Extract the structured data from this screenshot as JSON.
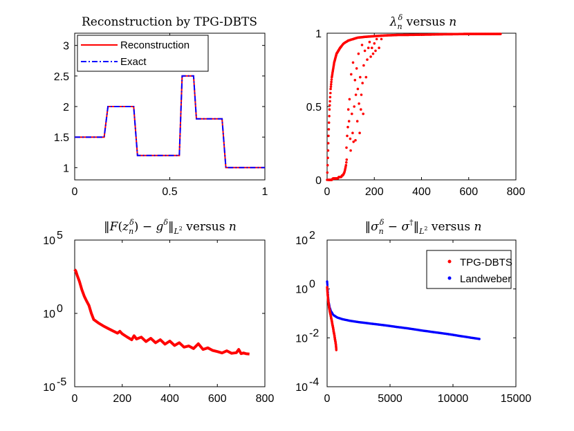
{
  "figure": {
    "name": "inverse-problem-figure"
  },
  "chart_data": [
    {
      "type": "line",
      "id": "p1",
      "title": "Reconstruction by TPG-DBTS",
      "xlim": [
        0,
        1
      ],
      "ylim": [
        0.8,
        3.2
      ],
      "xticks": [
        0,
        0.5,
        1
      ],
      "xtick_labels": [
        "0",
        "0.5",
        "1"
      ],
      "yticks": [
        1,
        1.5,
        2,
        2.5,
        3
      ],
      "ytick_labels": [
        "1",
        "1.5",
        "2",
        "2.5",
        "3"
      ],
      "legend_position": "top-left",
      "series": [
        {
          "name": "Reconstruction",
          "style": "solid",
          "color": "#ff0000",
          "x": [
            0,
            0.155,
            0.175,
            0.31,
            0.33,
            0.55,
            0.565,
            0.625,
            0.64,
            0.775,
            0.795,
            1
          ],
          "y": [
            1.5,
            1.5,
            2.0,
            2.0,
            1.2,
            1.2,
            2.5,
            2.5,
            1.8,
            1.8,
            1.0,
            1.0
          ]
        },
        {
          "name": "Exact",
          "style": "dash-dot",
          "color": "#0000ff",
          "x": [
            0,
            0.155,
            0.175,
            0.31,
            0.33,
            0.55,
            0.565,
            0.625,
            0.64,
            0.775,
            0.795,
            1
          ],
          "y": [
            1.5,
            1.5,
            2.0,
            2.0,
            1.2,
            1.2,
            2.5,
            2.5,
            1.8,
            1.8,
            1.0,
            1.0
          ]
        }
      ]
    },
    {
      "type": "scatter",
      "id": "p2",
      "title_main": "λ",
      "title_sub": "n",
      "title_sup": "δ",
      "title_rest": " versus ",
      "title_var": "n",
      "xlim": [
        0,
        800
      ],
      "ylim": [
        0,
        1
      ],
      "xticks": [
        0,
        200,
        400,
        600,
        800
      ],
      "xtick_labels": [
        "0",
        "200",
        "400",
        "600",
        "800"
      ],
      "yticks": [
        0,
        0.5,
        1
      ],
      "ytick_labels": [
        "0",
        "0.5",
        "1"
      ],
      "series": [
        {
          "name": "lambda-main-curve",
          "color": "#ff0000",
          "x": [
            0,
            3,
            6,
            10,
            15,
            20,
            30,
            40,
            55,
            70,
            90,
            110,
            130,
            160,
            200,
            250,
            300,
            400,
            500,
            600,
            735
          ],
          "y": [
            0.0,
            0.15,
            0.3,
            0.48,
            0.62,
            0.7,
            0.8,
            0.86,
            0.9,
            0.93,
            0.95,
            0.96,
            0.97,
            0.975,
            0.98,
            0.985,
            0.988,
            0.99,
            0.993,
            0.995,
            0.995
          ]
        },
        {
          "name": "lambda-low-branch",
          "color": "#ff0000",
          "x": [
            5,
            10,
            15,
            20,
            25,
            30,
            35,
            40,
            45,
            50,
            55,
            60,
            63,
            66,
            70,
            73,
            76,
            80,
            84
          ],
          "y": [
            0.0,
            0.0,
            0.0,
            0.0,
            0.01,
            0.01,
            0.01,
            0.01,
            0.01,
            0.02,
            0.02,
            0.02,
            0.03,
            0.03,
            0.04,
            0.05,
            0.07,
            0.1,
            0.15
          ]
        },
        {
          "name": "lambda-scatter",
          "color": "#ff0000",
          "x": [
            82,
            85,
            88,
            90,
            93,
            95,
            98,
            100,
            102,
            105,
            108,
            110,
            112,
            115,
            118,
            120,
            122,
            125,
            128,
            130,
            133,
            135,
            138,
            140,
            143,
            145,
            148,
            150,
            153,
            155,
            160,
            165,
            170,
            175,
            180,
            185,
            190,
            195,
            200,
            205,
            210,
            220,
            230
          ],
          "y": [
            0.22,
            0.3,
            0.36,
            0.48,
            0.4,
            0.55,
            0.28,
            0.2,
            0.72,
            0.45,
            0.32,
            0.8,
            0.26,
            0.5,
            0.68,
            0.27,
            0.58,
            0.76,
            0.4,
            0.62,
            0.86,
            0.52,
            0.32,
            0.7,
            0.48,
            0.58,
            0.92,
            0.66,
            0.45,
            0.78,
            0.88,
            0.7,
            0.82,
            0.9,
            0.94,
            0.84,
            0.9,
            0.86,
            0.93,
            0.88,
            0.96,
            0.9,
            0.96
          ]
        }
      ]
    },
    {
      "type": "line",
      "id": "p3",
      "title_pre": "‖",
      "title_F": "F",
      "title_z": "z",
      "title_sub": "n",
      "title_sup": "δ",
      "title_mid": ") − ",
      "title_g": "g",
      "title_norm": "‖",
      "title_L": "L",
      "title_Lsup": "2",
      "title_rest": " versus ",
      "title_var": "n",
      "yscale": "log",
      "xlim": [
        0,
        800
      ],
      "ylim_exp": [
        -5,
        5
      ],
      "xticks": [
        0,
        200,
        400,
        600,
        800
      ],
      "xtick_labels": [
        "0",
        "200",
        "400",
        "600",
        "800"
      ],
      "yticks_exp": [
        -5,
        0,
        5
      ],
      "ytick_base": "10",
      "ytick_exp_labels": [
        "-5",
        "0",
        "5"
      ],
      "series": [
        {
          "name": "residual",
          "color": "#ff0000",
          "x": [
            0,
            5,
            10,
            20,
            30,
            40,
            50,
            60,
            70,
            80,
            100,
            120,
            140,
            160,
            180,
            190,
            200,
            220,
            240,
            250,
            260,
            280,
            300,
            320,
            340,
            360,
            380,
            400,
            420,
            440,
            460,
            480,
            500,
            520,
            540,
            560,
            580,
            600,
            620,
            640,
            660,
            680,
            690,
            700,
            710,
            720,
            735
          ],
          "y": [
            1000,
            750,
            420,
            150,
            42,
            15,
            7,
            3.5,
            1.0,
            0.38,
            0.22,
            0.14,
            0.095,
            0.065,
            0.045,
            0.06,
            0.04,
            0.025,
            0.016,
            0.03,
            0.018,
            0.024,
            0.012,
            0.02,
            0.01,
            0.016,
            0.008,
            0.013,
            0.0065,
            0.01,
            0.005,
            0.006,
            0.004,
            0.0085,
            0.0035,
            0.0045,
            0.003,
            0.0025,
            0.002,
            0.0028,
            0.0019,
            0.0021,
            0.0035,
            0.0018,
            0.002,
            0.0018,
            0.0017
          ]
        }
      ]
    },
    {
      "type": "scatter",
      "id": "p4",
      "title_pre": "‖",
      "title_sigma": "σ",
      "title_sub": "n",
      "title_sup": "δ",
      "title_mid": " − ",
      "title_sigma2": "σ",
      "title_dagger": "†",
      "title_norm": "‖",
      "title_L": "L",
      "title_Lsup": "2",
      "title_rest": " versus ",
      "title_var": "n",
      "yscale": "log",
      "xlim": [
        0,
        15000
      ],
      "ylim_exp": [
        -4,
        2
      ],
      "xticks": [
        0,
        5000,
        10000,
        15000
      ],
      "xtick_labels": [
        "0",
        "5000",
        "10000",
        "15000"
      ],
      "yticks_exp": [
        -4,
        -2,
        0,
        2
      ],
      "ytick_base": "10",
      "ytick_exp_labels": [
        "-4",
        "-2",
        "0",
        "2"
      ],
      "legend_position": "top-right",
      "series": [
        {
          "name": "TPG-DBTS",
          "color": "#ff0000",
          "x": [
            0,
            30,
            80,
            150,
            230,
            320,
            420,
            520,
            620,
            700,
            735
          ],
          "y": [
            1.2,
            0.7,
            0.35,
            0.18,
            0.11,
            0.065,
            0.035,
            0.018,
            0.009,
            0.005,
            0.003
          ]
        },
        {
          "name": "Landweber",
          "color": "#0000ff",
          "x": [
            0,
            40,
            80,
            120,
            200,
            300,
            500,
            800,
            1200,
            1800,
            2500,
            3500,
            4500,
            5500,
            6500,
            7500,
            8500,
            9500,
            10500,
            11500,
            12100
          ],
          "y": [
            2.0,
            0.95,
            0.45,
            0.28,
            0.17,
            0.12,
            0.085,
            0.068,
            0.058,
            0.05,
            0.044,
            0.038,
            0.033,
            0.028,
            0.024,
            0.02,
            0.017,
            0.0145,
            0.012,
            0.01,
            0.009
          ]
        }
      ]
    }
  ]
}
